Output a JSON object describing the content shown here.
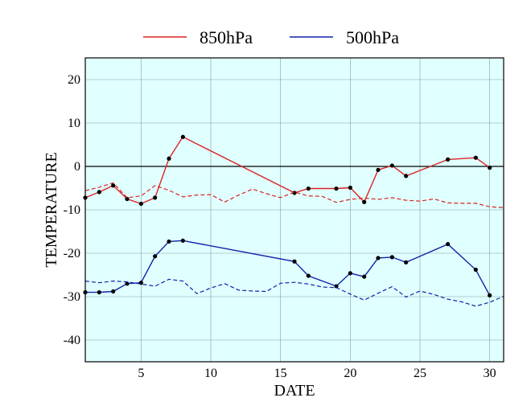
{
  "chart_data": {
    "type": "line",
    "xlabel": "DATE",
    "ylabel": "TEMPERATURE",
    "xlim": [
      1,
      31
    ],
    "ylim": [
      -45,
      25
    ],
    "xticks": [
      5,
      10,
      15,
      20,
      25,
      30
    ],
    "yticks": [
      -40,
      -30,
      -20,
      -10,
      0,
      10,
      20
    ],
    "grid": true,
    "zero_line": true,
    "legend_position": "top-center",
    "background_color": "#e0ffff",
    "series": [
      {
        "name": "850hPa",
        "color": "#dd2222",
        "style": "solid",
        "markers": true,
        "points": [
          [
            1,
            -7.2
          ],
          [
            2,
            -5.9
          ],
          [
            3,
            -4.4
          ],
          [
            4,
            -7.5
          ],
          [
            5,
            -8.6
          ],
          [
            6,
            -7.2
          ],
          [
            7,
            1.8
          ],
          [
            8,
            6.8
          ],
          [
            16,
            -6.1
          ],
          [
            17,
            -5.1
          ],
          [
            19,
            -5.1
          ],
          [
            20,
            -4.9
          ],
          [
            21,
            -8.2
          ],
          [
            22,
            -0.8
          ],
          [
            23,
            0.2
          ],
          [
            24,
            -2.2
          ],
          [
            27,
            1.6
          ],
          [
            29,
            2.0
          ],
          [
            30,
            -0.3
          ]
        ]
      },
      {
        "name": "",
        "color": "#dd2222",
        "style": "dashed",
        "markers": false,
        "points": [
          [
            1,
            -5.6
          ],
          [
            2,
            -4.8
          ],
          [
            3,
            -3.8
          ],
          [
            4,
            -7.2
          ],
          [
            5,
            -6.8
          ],
          [
            6,
            -4.4
          ],
          [
            7,
            -5.5
          ],
          [
            8,
            -7.0
          ],
          [
            9,
            -6.6
          ],
          [
            10,
            -6.5
          ],
          [
            11,
            -8.2
          ],
          [
            12,
            -6.6
          ],
          [
            13,
            -5.2
          ],
          [
            14,
            -6.3
          ],
          [
            15,
            -7.2
          ],
          [
            16,
            -5.9
          ],
          [
            17,
            -6.8
          ],
          [
            18,
            -6.9
          ],
          [
            19,
            -8.3
          ],
          [
            20,
            -7.6
          ],
          [
            21,
            -7.3
          ],
          [
            22,
            -7.6
          ],
          [
            23,
            -7.2
          ],
          [
            24,
            -7.8
          ],
          [
            25,
            -8.0
          ],
          [
            26,
            -7.5
          ],
          [
            27,
            -8.4
          ],
          [
            28,
            -8.5
          ],
          [
            29,
            -8.5
          ],
          [
            30,
            -9.3
          ],
          [
            31,
            -9.5
          ]
        ]
      },
      {
        "name": "500hPa",
        "color": "#1122aa",
        "style": "solid",
        "markers": true,
        "points": [
          [
            1,
            -29.0
          ],
          [
            2,
            -29.0
          ],
          [
            3,
            -28.8
          ],
          [
            4,
            -27.0
          ],
          [
            5,
            -26.8
          ],
          [
            6,
            -20.7
          ],
          [
            7,
            -17.3
          ],
          [
            8,
            -17.1
          ],
          [
            16,
            -21.9
          ],
          [
            17,
            -25.2
          ],
          [
            19,
            -27.6
          ],
          [
            20,
            -24.6
          ],
          [
            21,
            -25.4
          ],
          [
            22,
            -21.1
          ],
          [
            23,
            -20.9
          ],
          [
            24,
            -22.1
          ],
          [
            27,
            -17.9
          ],
          [
            29,
            -23.8
          ],
          [
            30,
            -29.7
          ]
        ]
      },
      {
        "name": "",
        "color": "#1122aa",
        "style": "dashed",
        "markers": false,
        "points": [
          [
            1,
            -26.4
          ],
          [
            2,
            -26.8
          ],
          [
            3,
            -26.4
          ],
          [
            4,
            -26.6
          ],
          [
            5,
            -27.1
          ],
          [
            6,
            -27.6
          ],
          [
            7,
            -26.0
          ],
          [
            8,
            -26.4
          ],
          [
            9,
            -29.3
          ],
          [
            10,
            -28.0
          ],
          [
            11,
            -27.0
          ],
          [
            12,
            -28.5
          ],
          [
            13,
            -28.7
          ],
          [
            14,
            -28.8
          ],
          [
            15,
            -26.9
          ],
          [
            16,
            -26.7
          ],
          [
            17,
            -27.1
          ],
          [
            18,
            -27.8
          ],
          [
            19,
            -27.9
          ],
          [
            20,
            -29.4
          ],
          [
            21,
            -30.8
          ],
          [
            22,
            -29.2
          ],
          [
            23,
            -27.7
          ],
          [
            24,
            -30.1
          ],
          [
            25,
            -28.7
          ],
          [
            26,
            -29.5
          ],
          [
            27,
            -30.6
          ],
          [
            28,
            -31.2
          ],
          [
            29,
            -32.2
          ],
          [
            30,
            -31.3
          ],
          [
            31,
            -29.9
          ]
        ]
      }
    ]
  }
}
